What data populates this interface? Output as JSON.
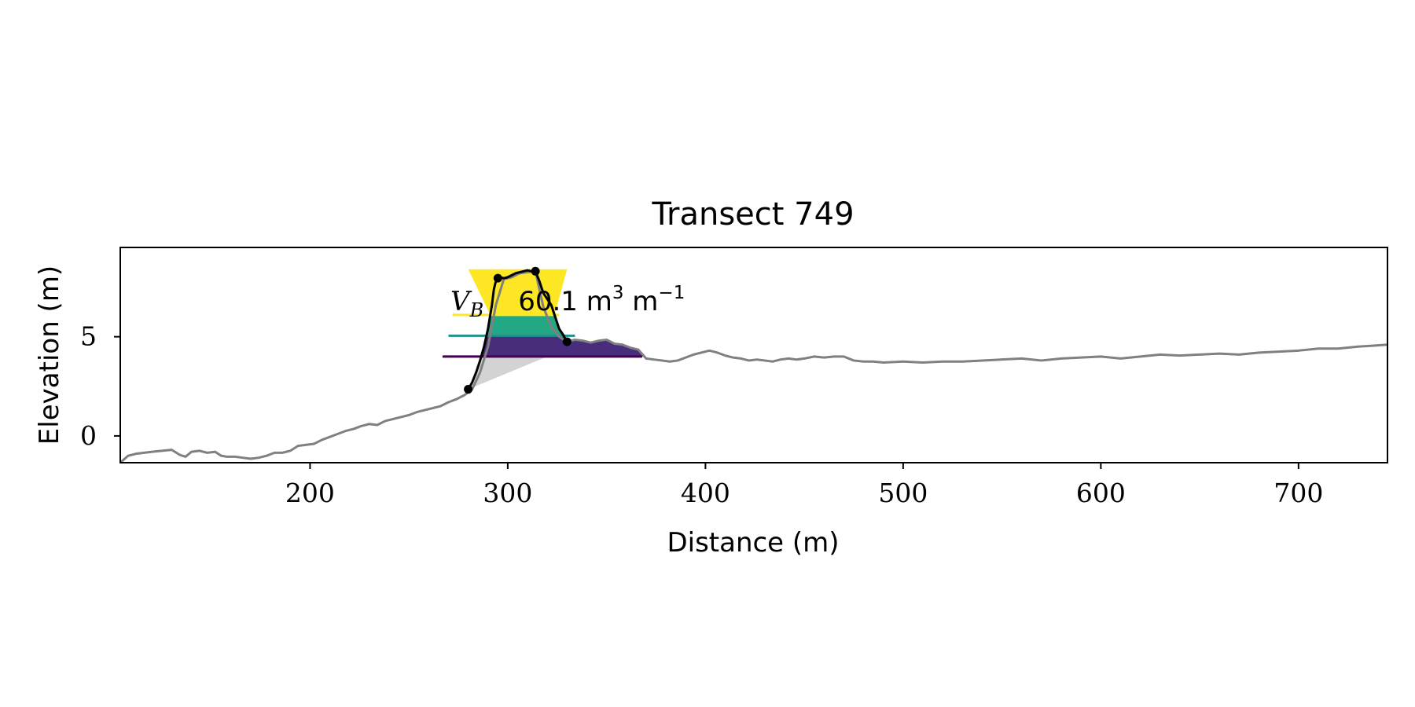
{
  "chart_data": {
    "type": "line",
    "title": "Transect 749",
    "xlabel": "Distance (m)",
    "ylabel": "Elevation (m)",
    "xlim": [
      104,
      745
    ],
    "ylim": [
      -1.35,
      9.5
    ],
    "xticks": [
      200,
      300,
      400,
      500,
      600,
      700
    ],
    "yticks": [
      0,
      5
    ],
    "grid": false,
    "legend": "none",
    "annotation": {
      "symbol": "V",
      "subscript": "B",
      "value_text": "60.1 m",
      "unit_exponent": "3",
      "unit_tail": " m",
      "unit_tail_exponent": "−1"
    },
    "profile": {
      "color": "#808080",
      "x": [
        104,
        108,
        112,
        116,
        120,
        125,
        130,
        134,
        137,
        140,
        144,
        148,
        152,
        155,
        158,
        162,
        166,
        170,
        174,
        178,
        182,
        186,
        190,
        194,
        198,
        202,
        206,
        210,
        214,
        218,
        222,
        226,
        230,
        234,
        238,
        242,
        246,
        250,
        254,
        258,
        262,
        266,
        270,
        274,
        278,
        282,
        286,
        290,
        294,
        298,
        302,
        306,
        310,
        314,
        318,
        322,
        326,
        330,
        334,
        338,
        342,
        346,
        350,
        354,
        358,
        362,
        366,
        370,
        374,
        378,
        382,
        386,
        390,
        394,
        398,
        402,
        406,
        410,
        414,
        418,
        422,
        426,
        430,
        434,
        438,
        442,
        446,
        450,
        455,
        460,
        465,
        470,
        475,
        480,
        485,
        490,
        500,
        510,
        520,
        530,
        540,
        550,
        560,
        570,
        580,
        590,
        600,
        610,
        620,
        630,
        640,
        650,
        660,
        670,
        680,
        690,
        700,
        710,
        720,
        730,
        738,
        745
      ],
      "y": [
        -1.35,
        -1.0,
        -0.9,
        -0.85,
        -0.8,
        -0.75,
        -0.7,
        -0.95,
        -1.05,
        -0.8,
        -0.75,
        -0.85,
        -0.8,
        -1.0,
        -1.05,
        -1.05,
        -1.1,
        -1.15,
        -1.1,
        -1.0,
        -0.85,
        -0.85,
        -0.75,
        -0.5,
        -0.45,
        -0.4,
        -0.2,
        -0.05,
        0.1,
        0.25,
        0.35,
        0.5,
        0.6,
        0.55,
        0.75,
        0.85,
        0.95,
        1.05,
        1.2,
        1.3,
        1.4,
        1.5,
        1.7,
        1.85,
        2.05,
        2.35,
        3.2,
        4.5,
        6.6,
        7.9,
        8.0,
        8.2,
        8.25,
        8.3,
        6.5,
        5.5,
        5.0,
        4.75,
        4.85,
        4.8,
        4.7,
        4.8,
        4.85,
        4.65,
        4.6,
        4.45,
        4.35,
        3.9,
        3.85,
        3.8,
        3.75,
        3.8,
        3.95,
        4.1,
        4.2,
        4.3,
        4.2,
        4.05,
        3.95,
        3.9,
        3.8,
        3.85,
        3.8,
        3.75,
        3.85,
        3.9,
        3.85,
        3.9,
        4.0,
        3.95,
        4.0,
        4.0,
        3.8,
        3.75,
        3.75,
        3.7,
        3.75,
        3.7,
        3.75,
        3.75,
        3.8,
        3.85,
        3.9,
        3.8,
        3.9,
        3.95,
        4.0,
        3.9,
        4.0,
        4.1,
        4.05,
        4.1,
        4.15,
        4.1,
        4.2,
        4.25,
        4.3,
        4.4,
        4.4,
        4.5,
        4.55,
        4.6
      ]
    },
    "dune": {
      "color": "#000000",
      "x": [
        280,
        282,
        284,
        286,
        288,
        290,
        292,
        293,
        294,
        296,
        298,
        300,
        302,
        304,
        306,
        308,
        310,
        312,
        314,
        316,
        318,
        320,
        322,
        324,
        326,
        328,
        330
      ],
      "y": [
        2.35,
        2.7,
        3.2,
        3.8,
        4.5,
        5.4,
        6.6,
        7.4,
        7.8,
        8.0,
        7.95,
        8.0,
        8.1,
        8.2,
        8.25,
        8.3,
        8.35,
        8.3,
        8.3,
        7.8,
        7.2,
        6.9,
        6.6,
        6.0,
        5.4,
        5.1,
        4.75
      ],
      "markers": [
        [
          280,
          2.35
        ],
        [
          295,
          7.95
        ],
        [
          314,
          8.3
        ],
        [
          330,
          4.75
        ]
      ]
    },
    "levels": [
      {
        "y": 6.1,
        "color": "#fde725",
        "xmin": 272,
        "xmax": 326
      },
      {
        "y": 5.05,
        "color": "#21918c",
        "xmin": 270,
        "xmax": 334
      },
      {
        "y": 4.0,
        "color": "#440154",
        "xmin": 267,
        "xmax": 368
      }
    ],
    "fills": [
      {
        "color": "#fde725",
        "from": 6.1,
        "to": 8.35
      },
      {
        "color": "#22a884",
        "from": 5.05,
        "to": 6.1
      },
      {
        "color": "#472d7b",
        "from": 4.0,
        "to": 5.05
      },
      {
        "color": "#d3d3d3",
        "from": "toe-line",
        "to": 4.0
      }
    ]
  }
}
